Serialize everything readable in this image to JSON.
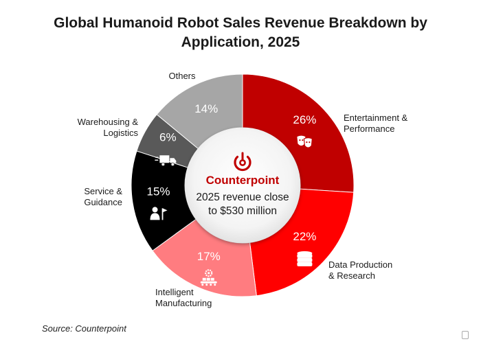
{
  "chart_data": {
    "type": "pie",
    "variant": "donut",
    "title": "Global Humanoid Robot Sales Revenue Breakdown by Application, 2025",
    "title_lines": [
      "Global Humanoid Robot Sales Revenue Breakdown by",
      "Application, 2025"
    ],
    "center": {
      "brand": "Counterpoint",
      "note_lines": [
        "2025 revenue close",
        "to $530 million"
      ]
    },
    "slices": [
      {
        "label": "Entertainment & Performance",
        "label_lines": [
          "Entertainment &",
          "Performance"
        ],
        "value": 26,
        "display": "26%",
        "color": "#c00000",
        "icon": "theater-masks-icon"
      },
      {
        "label": "Data Production & Research",
        "label_lines": [
          "Data Production",
          "& Research"
        ],
        "value": 22,
        "display": "22%",
        "color": "#ff0000",
        "icon": "database-icon"
      },
      {
        "label": "Intelligent Manufacturing",
        "label_lines": [
          "Intelligent",
          "Manufacturing"
        ],
        "value": 17,
        "display": "17%",
        "color": "#ff7c80",
        "icon": "conveyor-gear-icon"
      },
      {
        "label": "Service & Guidance",
        "label_lines": [
          "Service &",
          "Guidance"
        ],
        "value": 15,
        "display": "15%",
        "color": "#000000",
        "icon": "guide-person-icon"
      },
      {
        "label": "Warehousing & Logistics",
        "label_lines": [
          "Warehousing &",
          "Logistics"
        ],
        "value": 6,
        "display": "6%",
        "color": "#595959",
        "icon": "truck-icon"
      },
      {
        "label": "Others",
        "label_lines": [
          "Others"
        ],
        "value": 14,
        "display": "14%",
        "color": "#a6a6a6",
        "icon": ""
      }
    ]
  },
  "source": "Source: Counterpoint"
}
